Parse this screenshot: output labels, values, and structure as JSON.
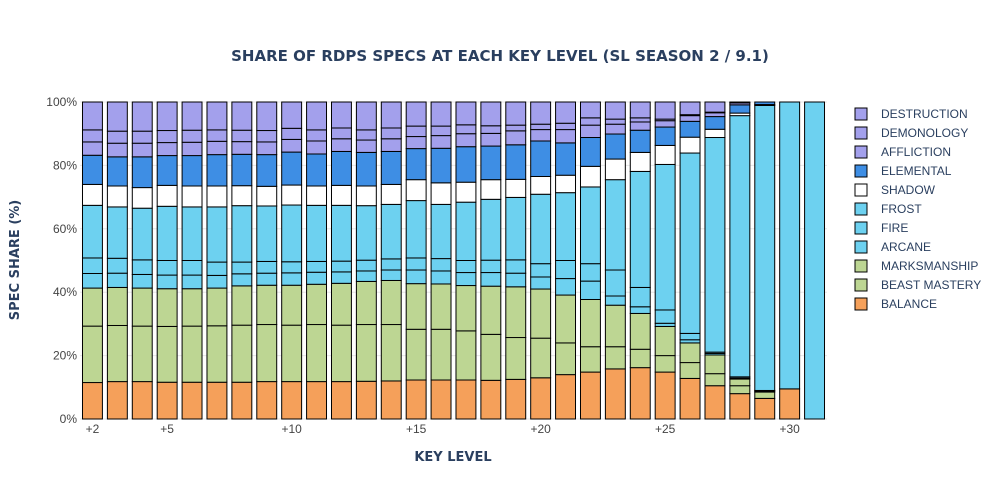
{
  "chart_data": {
    "type": "bar",
    "stacked": true,
    "title": "SHARE OF RDPS SPECS AT EACH KEY LEVEL (SL SEASON 2 / 9.1)",
    "xlabel": "KEY LEVEL",
    "ylabel": "SPEC SHARE (%)",
    "ylim": [
      0,
      100
    ],
    "yticks": [
      0,
      20,
      40,
      60,
      80,
      100
    ],
    "ytick_labels": [
      "0%",
      "20%",
      "40%",
      "60%",
      "80%",
      "100%"
    ],
    "xticks": [
      2,
      5,
      10,
      15,
      20,
      25,
      30
    ],
    "xtick_labels": [
      "+2",
      "+5",
      "+10",
      "+15",
      "+20",
      "+25",
      "+30"
    ],
    "legend_position": "right",
    "categories": [
      2,
      3,
      4,
      5,
      6,
      7,
      8,
      9,
      10,
      11,
      12,
      13,
      14,
      15,
      16,
      17,
      18,
      19,
      20,
      21,
      22,
      23,
      24,
      25,
      26,
      27,
      28,
      29,
      30,
      31
    ],
    "series": [
      {
        "name": "BALANCE",
        "color": "#f5a05a",
        "values": [
          11.5,
          11.8,
          11.8,
          11.6,
          11.6,
          11.6,
          11.6,
          11.8,
          11.8,
          11.8,
          11.8,
          11.9,
          12.0,
          12.3,
          12.3,
          12.3,
          12.2,
          12.5,
          13.0,
          14.0,
          14.8,
          15.8,
          16.2,
          14.8,
          12.8,
          10.5,
          8.0,
          6.5,
          9.5,
          0
        ]
      },
      {
        "name": "BEAST MASTERY",
        "color": "#bdd693",
        "values": [
          17.8,
          17.7,
          17.5,
          17.6,
          17.7,
          17.8,
          18.0,
          18.0,
          17.8,
          18.0,
          17.8,
          17.9,
          17.8,
          16.0,
          16.0,
          15.5,
          14.5,
          13.2,
          12.5,
          10.0,
          8.0,
          7.0,
          5.8,
          5.2,
          5.0,
          3.8,
          2.5,
          2.0,
          0,
          0
        ]
      },
      {
        "name": "MARKSMANSHIP",
        "color": "#bdd693",
        "values": [
          12.0,
          12.0,
          12.0,
          11.9,
          11.8,
          11.9,
          12.4,
          12.4,
          12.6,
          12.7,
          13.2,
          13.6,
          13.9,
          14.4,
          14.3,
          14.3,
          15.2,
          16.0,
          15.5,
          15.1,
          14.9,
          13.1,
          11.3,
          9.2,
          6.2,
          5.9,
          2.1,
          0,
          0,
          0
        ]
      },
      {
        "name": "ARCANE",
        "color": "#6dd1f0",
        "values": [
          4.6,
          4.5,
          4.3,
          4.3,
          4.3,
          4.0,
          3.8,
          3.8,
          3.9,
          3.8,
          3.6,
          3.3,
          3.3,
          4.3,
          4.1,
          4.1,
          4.3,
          4.3,
          3.8,
          5.2,
          5.8,
          2.9,
          2.1,
          1.0,
          1.0,
          0.5,
          0.3,
          0.3,
          0,
          0
        ]
      },
      {
        "name": "FIRE",
        "color": "#6dd1f0",
        "values": [
          4.9,
          4.7,
          4.6,
          4.6,
          4.6,
          4.2,
          3.7,
          3.7,
          3.5,
          3.4,
          3.4,
          3.4,
          3.5,
          3.8,
          3.9,
          3.8,
          3.9,
          4.2,
          4.2,
          5.7,
          5.5,
          8.2,
          6.1,
          4.2,
          2.0,
          0.4,
          0.4,
          0.2,
          0,
          0
        ]
      },
      {
        "name": "FROST",
        "color": "#6dd1f0",
        "values": [
          16.6,
          16.2,
          16.3,
          17.1,
          16.9,
          17.4,
          17.8,
          17.5,
          17.9,
          17.7,
          17.6,
          17.2,
          17.2,
          18.1,
          17.1,
          18.4,
          19.2,
          19.7,
          21.9,
          21.4,
          24.2,
          28.5,
          36.6,
          45.9,
          56.9,
          67.7,
          82.4,
          89.9,
          90.5,
          100
        ]
      },
      {
        "name": "SHADOW",
        "color": "#ffffff",
        "values": [
          6.6,
          6.6,
          6.5,
          6.6,
          6.6,
          6.6,
          6.3,
          6.2,
          6.3,
          6.1,
          6.3,
          6.2,
          6.3,
          6.6,
          6.8,
          6.3,
          6.2,
          5.7,
          5.6,
          5.5,
          6.5,
          6.5,
          6.0,
          6.0,
          5.0,
          2.6,
          0.8,
          0.3,
          0,
          0
        ]
      },
      {
        "name": "ELEMENTAL",
        "color": "#3e8ee4",
        "values": [
          9.2,
          9.2,
          9.7,
          9.4,
          9.6,
          9.9,
          9.9,
          10.0,
          10.4,
          10.1,
          10.7,
          10.6,
          10.4,
          9.8,
          10.9,
          11.2,
          10.6,
          10.9,
          11.2,
          10.2,
          9.1,
          7.9,
          7.0,
          5.8,
          5.0,
          4.0,
          2.6,
          0.8,
          0,
          0
        ]
      },
      {
        "name": "AFFLICTION",
        "color": "#a3a0ec",
        "values": [
          4.2,
          4.3,
          4.3,
          4.1,
          4.2,
          4.2,
          4.0,
          4.0,
          4.0,
          4.1,
          4.0,
          3.9,
          4.0,
          3.8,
          4.0,
          4.1,
          4.0,
          4.4,
          3.6,
          4.2,
          3.9,
          3.1,
          2.6,
          2.0,
          1.8,
          1.2,
          0.6,
          0,
          0,
          0
        ]
      },
      {
        "name": "DEMONOLOGY",
        "color": "#a3a0ec",
        "values": [
          3.8,
          3.8,
          3.8,
          3.8,
          3.8,
          3.6,
          3.6,
          3.6,
          3.5,
          3.5,
          3.4,
          3.2,
          3.4,
          3.3,
          3.0,
          2.8,
          2.4,
          1.8,
          1.7,
          2.0,
          2.3,
          1.6,
          1.3,
          0.5,
          0.3,
          0.2,
          0.2,
          0,
          0,
          0
        ]
      },
      {
        "name": "DESTRUCTION",
        "color": "#a3a0ec",
        "values": [
          8.8,
          9.2,
          9.2,
          9.0,
          8.9,
          8.8,
          8.9,
          9.0,
          8.3,
          8.8,
          8.2,
          8.8,
          8.2,
          7.6,
          7.6,
          7.2,
          7.5,
          7.3,
          7.0,
          6.7,
          5.0,
          5.4,
          5.0,
          5.4,
          4.0,
          3.2,
          0.1,
          0,
          0,
          0
        ]
      }
    ]
  }
}
